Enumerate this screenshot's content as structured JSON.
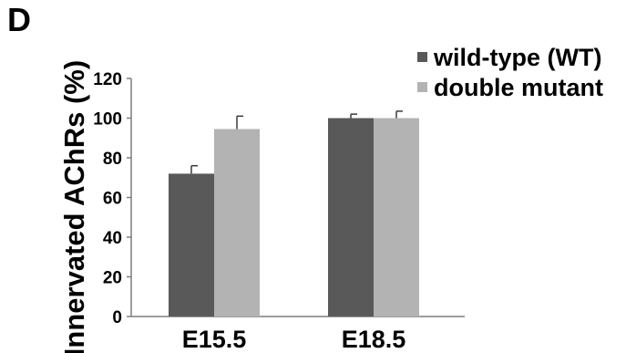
{
  "panel_label": "D",
  "chart_data": {
    "type": "bar",
    "categories": [
      "E15.5",
      "E18.5"
    ],
    "series": [
      {
        "name": "wild-type (WT)",
        "values": [
          72,
          100
        ],
        "errors": [
          4,
          2
        ],
        "color": "#595959"
      },
      {
        "name": "double mutant",
        "values": [
          94.5,
          100
        ],
        "errors": [
          6.5,
          3.5
        ],
        "color": "#b3b3b3"
      }
    ],
    "ylabel": "Innervated AChRs (%)",
    "xlabel": "",
    "ylim": [
      0,
      120
    ],
    "yticks": [
      "0",
      "20",
      "40",
      "60",
      "80",
      "100",
      "120"
    ],
    "grid": false,
    "legend": "top-right",
    "error_bars": "upper only"
  }
}
